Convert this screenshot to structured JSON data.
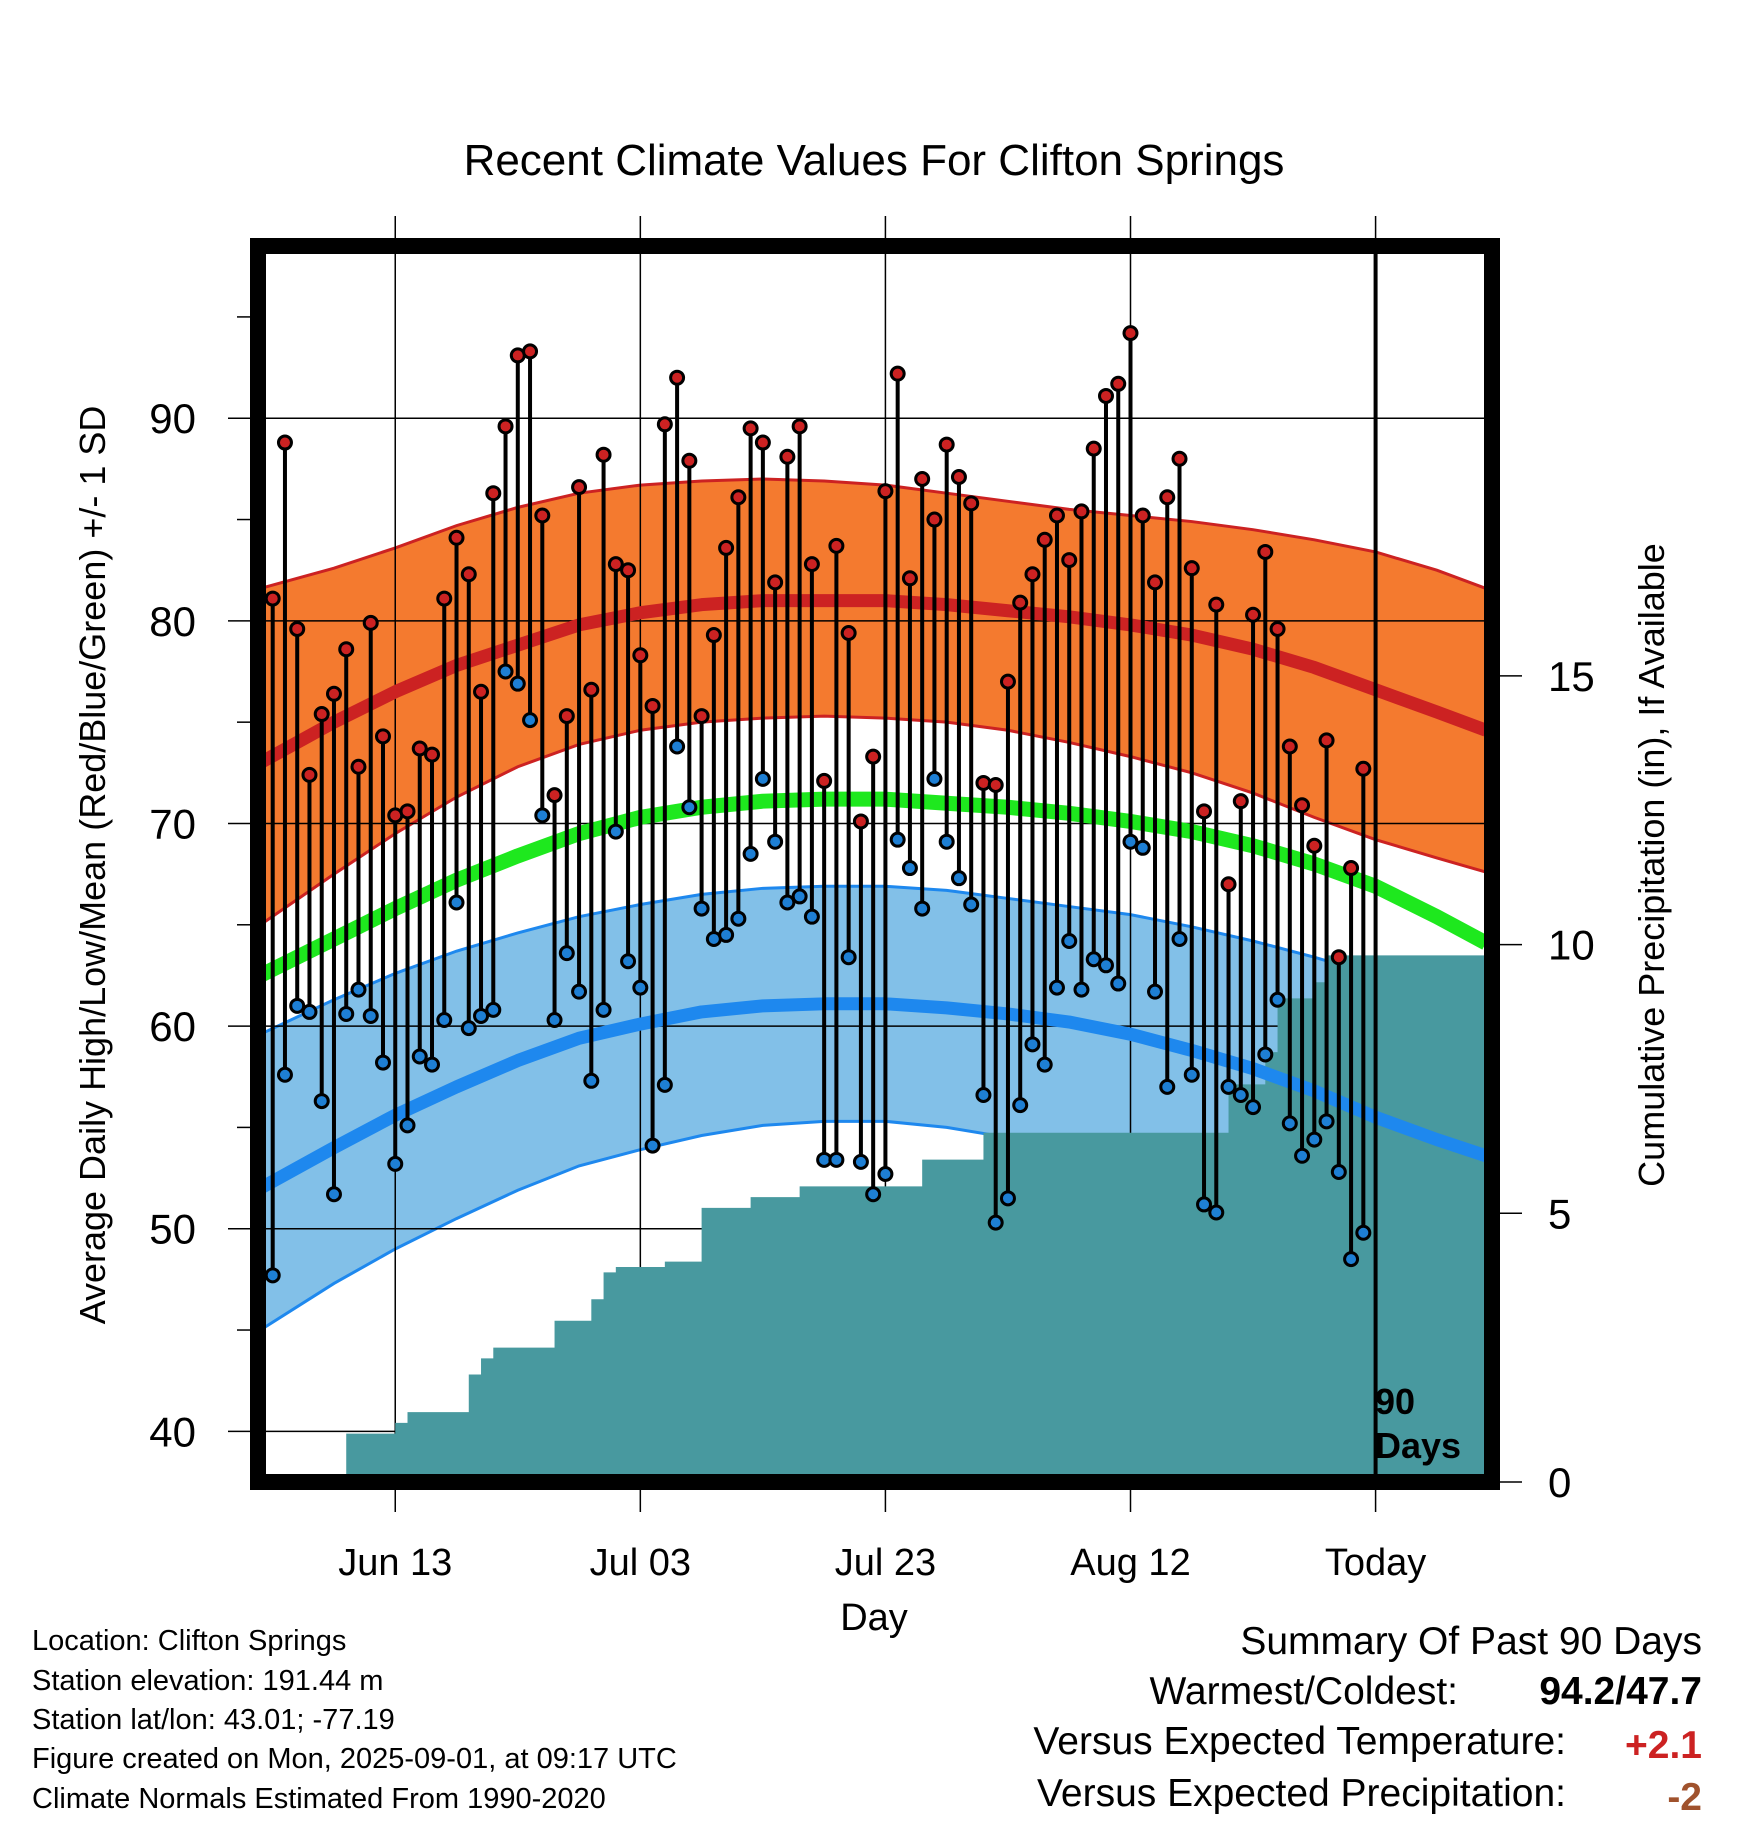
{
  "chart_data": {
    "type": "line",
    "title": "Recent Climate Values For Clifton Springs",
    "xlabel": "Day",
    "ylabel": "Average Daily High/Low/Mean (Red/Blue/Green) +/- 1 SD",
    "y2label": "Cumulative Precipitation (in), If Available",
    "ylim": [
      37.5,
      98.5
    ],
    "y2lim": [
      0,
      23
    ],
    "yticks": [
      40,
      50,
      60,
      70,
      80,
      90
    ],
    "y2ticks": [
      0,
      5,
      10,
      15
    ],
    "xlim": [
      -11.2,
      89.5
    ],
    "xticks": [
      {
        "x": 0,
        "label": "Jun 13"
      },
      {
        "x": 20,
        "label": "Jul 03"
      },
      {
        "x": 40,
        "label": "Jul 23"
      },
      {
        "x": 60,
        "label": "Aug 12"
      },
      {
        "x": 80,
        "label": "Today"
      }
    ],
    "today_x": 80,
    "period_label_line1": "90",
    "period_label_line2": "Days",
    "grid": true,
    "normals": {
      "x": [
        -11,
        -5,
        0,
        5,
        10,
        15,
        20,
        25,
        30,
        35,
        40,
        45,
        50,
        55,
        60,
        65,
        70,
        75,
        80,
        85,
        89
      ],
      "high_mean": [
        73.0,
        75.0,
        76.5,
        77.8,
        78.8,
        79.8,
        80.4,
        80.8,
        81.0,
        81.0,
        81.0,
        80.8,
        80.5,
        80.2,
        79.8,
        79.3,
        78.6,
        77.7,
        76.6,
        75.5,
        74.6
      ],
      "high_upper": [
        81.6,
        82.6,
        83.6,
        84.7,
        85.6,
        86.3,
        86.7,
        86.9,
        87.0,
        86.9,
        86.7,
        86.3,
        85.9,
        85.5,
        85.2,
        84.9,
        84.5,
        84.0,
        83.4,
        82.5,
        81.6
      ],
      "high_lower": [
        65.0,
        67.5,
        69.5,
        71.3,
        72.8,
        73.9,
        74.6,
        75.0,
        75.2,
        75.3,
        75.2,
        75.0,
        74.6,
        74.0,
        73.3,
        72.5,
        71.5,
        70.3,
        69.2,
        68.3,
        67.6
      ],
      "mean": [
        62.5,
        64.3,
        65.8,
        67.2,
        68.4,
        69.5,
        70.3,
        70.8,
        71.1,
        71.2,
        71.2,
        71.0,
        70.8,
        70.5,
        70.1,
        69.6,
        68.9,
        68.0,
        66.9,
        65.4,
        64.1
      ],
      "low_mean": [
        52.0,
        54.0,
        55.6,
        57.0,
        58.3,
        59.4,
        60.1,
        60.7,
        61.0,
        61.1,
        61.1,
        60.9,
        60.6,
        60.2,
        59.6,
        58.8,
        57.9,
        56.8,
        55.5,
        54.4,
        53.6
      ],
      "low_upper": [
        59.6,
        61.3,
        62.6,
        63.7,
        64.6,
        65.4,
        66.0,
        66.5,
        66.8,
        66.9,
        66.9,
        66.7,
        66.3,
        65.9,
        65.5,
        64.9,
        64.2,
        63.4,
        62.5,
        61.7,
        61.0
      ],
      "low_lower": [
        45.0,
        47.3,
        49.0,
        50.5,
        51.9,
        53.1,
        53.9,
        54.6,
        55.1,
        55.3,
        55.3,
        55.0,
        54.5,
        53.7,
        52.7,
        51.5,
        50.0,
        48.2,
        46.3,
        44.5,
        43.0
      ]
    },
    "observed": {
      "x": [
        -10,
        -9,
        -8,
        -7,
        -6,
        -5,
        -4,
        -3,
        -2,
        -1,
        0,
        1,
        2,
        3,
        4,
        5,
        6,
        7,
        8,
        9,
        10,
        11,
        12,
        13,
        14,
        15,
        16,
        17,
        18,
        19,
        20,
        21,
        22,
        23,
        24,
        25,
        26,
        27,
        28,
        29,
        30,
        31,
        32,
        33,
        34,
        35,
        36,
        37,
        38,
        39,
        40,
        41,
        42,
        43,
        44,
        45,
        46,
        47,
        48,
        49,
        50,
        51,
        52,
        53,
        54,
        55,
        56,
        57,
        58,
        59,
        60,
        61,
        62,
        63,
        64,
        65,
        66,
        67,
        68,
        69,
        70,
        71,
        72,
        73,
        74,
        75,
        76,
        77,
        78,
        79
      ],
      "high": [
        81.1,
        88.8,
        79.6,
        72.4,
        75.4,
        76.4,
        78.6,
        72.8,
        79.9,
        74.3,
        70.4,
        70.6,
        73.7,
        73.4,
        81.1,
        84.1,
        82.3,
        76.5,
        86.3,
        89.6,
        93.1,
        93.3,
        85.2,
        71.4,
        75.3,
        86.6,
        76.6,
        88.2,
        82.8,
        82.5,
        78.3,
        75.8,
        89.7,
        92.0,
        87.9,
        75.3,
        79.3,
        83.6,
        86.1,
        89.5,
        88.8,
        81.9,
        88.1,
        89.6,
        82.8,
        72.1,
        83.7,
        79.4,
        70.1,
        73.3,
        86.4,
        92.2,
        82.1,
        87.0,
        85.0,
        88.7,
        87.1,
        85.8,
        72.0,
        71.9,
        77.0,
        80.9,
        82.3,
        84.0,
        85.2,
        83.0,
        85.4,
        88.5,
        91.1,
        91.7,
        94.2,
        85.2,
        81.9,
        86.1,
        88.0,
        82.6,
        70.6,
        80.8,
        67.0,
        71.1,
        80.3,
        83.4,
        79.6,
        73.8,
        70.9,
        68.9,
        74.1,
        63.4,
        67.8,
        72.7
      ],
      "low": [
        47.7,
        57.6,
        61.0,
        60.7,
        56.3,
        51.7,
        60.6,
        61.8,
        60.5,
        58.2,
        53.2,
        55.1,
        58.5,
        58.1,
        60.3,
        66.1,
        59.9,
        60.5,
        60.8,
        77.5,
        76.9,
        75.1,
        70.4,
        60.3,
        63.6,
        61.7,
        57.3,
        60.8,
        69.6,
        63.2,
        61.9,
        54.1,
        57.1,
        73.8,
        70.8,
        65.8,
        64.3,
        64.5,
        65.3,
        68.5,
        72.2,
        69.1,
        66.1,
        66.4,
        65.4,
        53.4,
        53.4,
        63.4,
        53.3,
        51.7,
        52.7,
        69.2,
        67.8,
        65.8,
        72.2,
        69.1,
        67.3,
        66.0,
        56.6,
        50.3,
        51.5,
        56.1,
        59.1,
        58.1,
        61.9,
        64.2,
        61.8,
        63.3,
        63.0,
        62.1,
        69.1,
        68.8,
        61.7,
        57.0,
        64.3,
        57.6,
        51.2,
        50.8,
        57.0,
        56.6,
        56.0,
        58.6,
        61.3,
        55.2,
        53.6,
        54.4,
        55.3,
        52.8,
        48.5,
        49.8
      ]
    },
    "precipitation": {
      "x": [
        -10,
        -5,
        -4,
        0,
        1,
        5,
        6,
        7,
        8,
        11,
        12,
        13,
        15,
        16,
        17,
        18,
        21,
        22,
        24,
        25,
        27,
        29,
        32,
        33,
        38,
        41,
        43,
        45,
        48,
        65,
        68,
        69,
        71,
        72,
        74,
        75,
        76,
        78,
        80,
        85,
        89
      ],
      "cumulative": [
        0,
        0,
        0.9,
        1.1,
        1.3,
        1.3,
        2.0,
        2.3,
        2.5,
        2.5,
        2.5,
        3.0,
        3.0,
        3.4,
        3.9,
        4.0,
        4.0,
        4.1,
        4.1,
        5.1,
        5.1,
        5.3,
        5.3,
        5.5,
        5.5,
        5.5,
        6.0,
        6.0,
        6.5,
        6.5,
        7.4,
        7.4,
        8.0,
        9.0,
        9.0,
        9.3,
        9.8,
        9.8,
        9.8,
        9.8,
        9.8
      ]
    }
  },
  "info": {
    "location": "Location: Clifton Springs",
    "elevation": "Station elevation: 191.44 m",
    "latlon": "Station lat/lon: 43.01; -77.19",
    "created": "Figure created on Mon, 2025-09-01, at 09:17 UTC",
    "normals": "Climate Normals Estimated From 1990-2020"
  },
  "summary": {
    "heading": "Summary Of Past 90 Days",
    "warm_cold_label": "Warmest/Coldest:",
    "warm_cold_value": "94.2/47.7",
    "temp_label": "Versus Expected Temperature:",
    "temp_value": "+2.1",
    "precip_label": "Versus Expected Precipitation:",
    "precip_value": "-2"
  },
  "colors": {
    "high_band": "#f47a2f",
    "high_line": "#cc2222",
    "low_band": "#82c0e8",
    "low_line": "#1e88ee",
    "mean_line": "#1ee81e",
    "precip": "#48999f",
    "high_dot": "#cc2222",
    "low_dot": "#1e7fd4",
    "temp_anomaly": "#cc2222",
    "precip_anomaly": "#a0522d"
  }
}
